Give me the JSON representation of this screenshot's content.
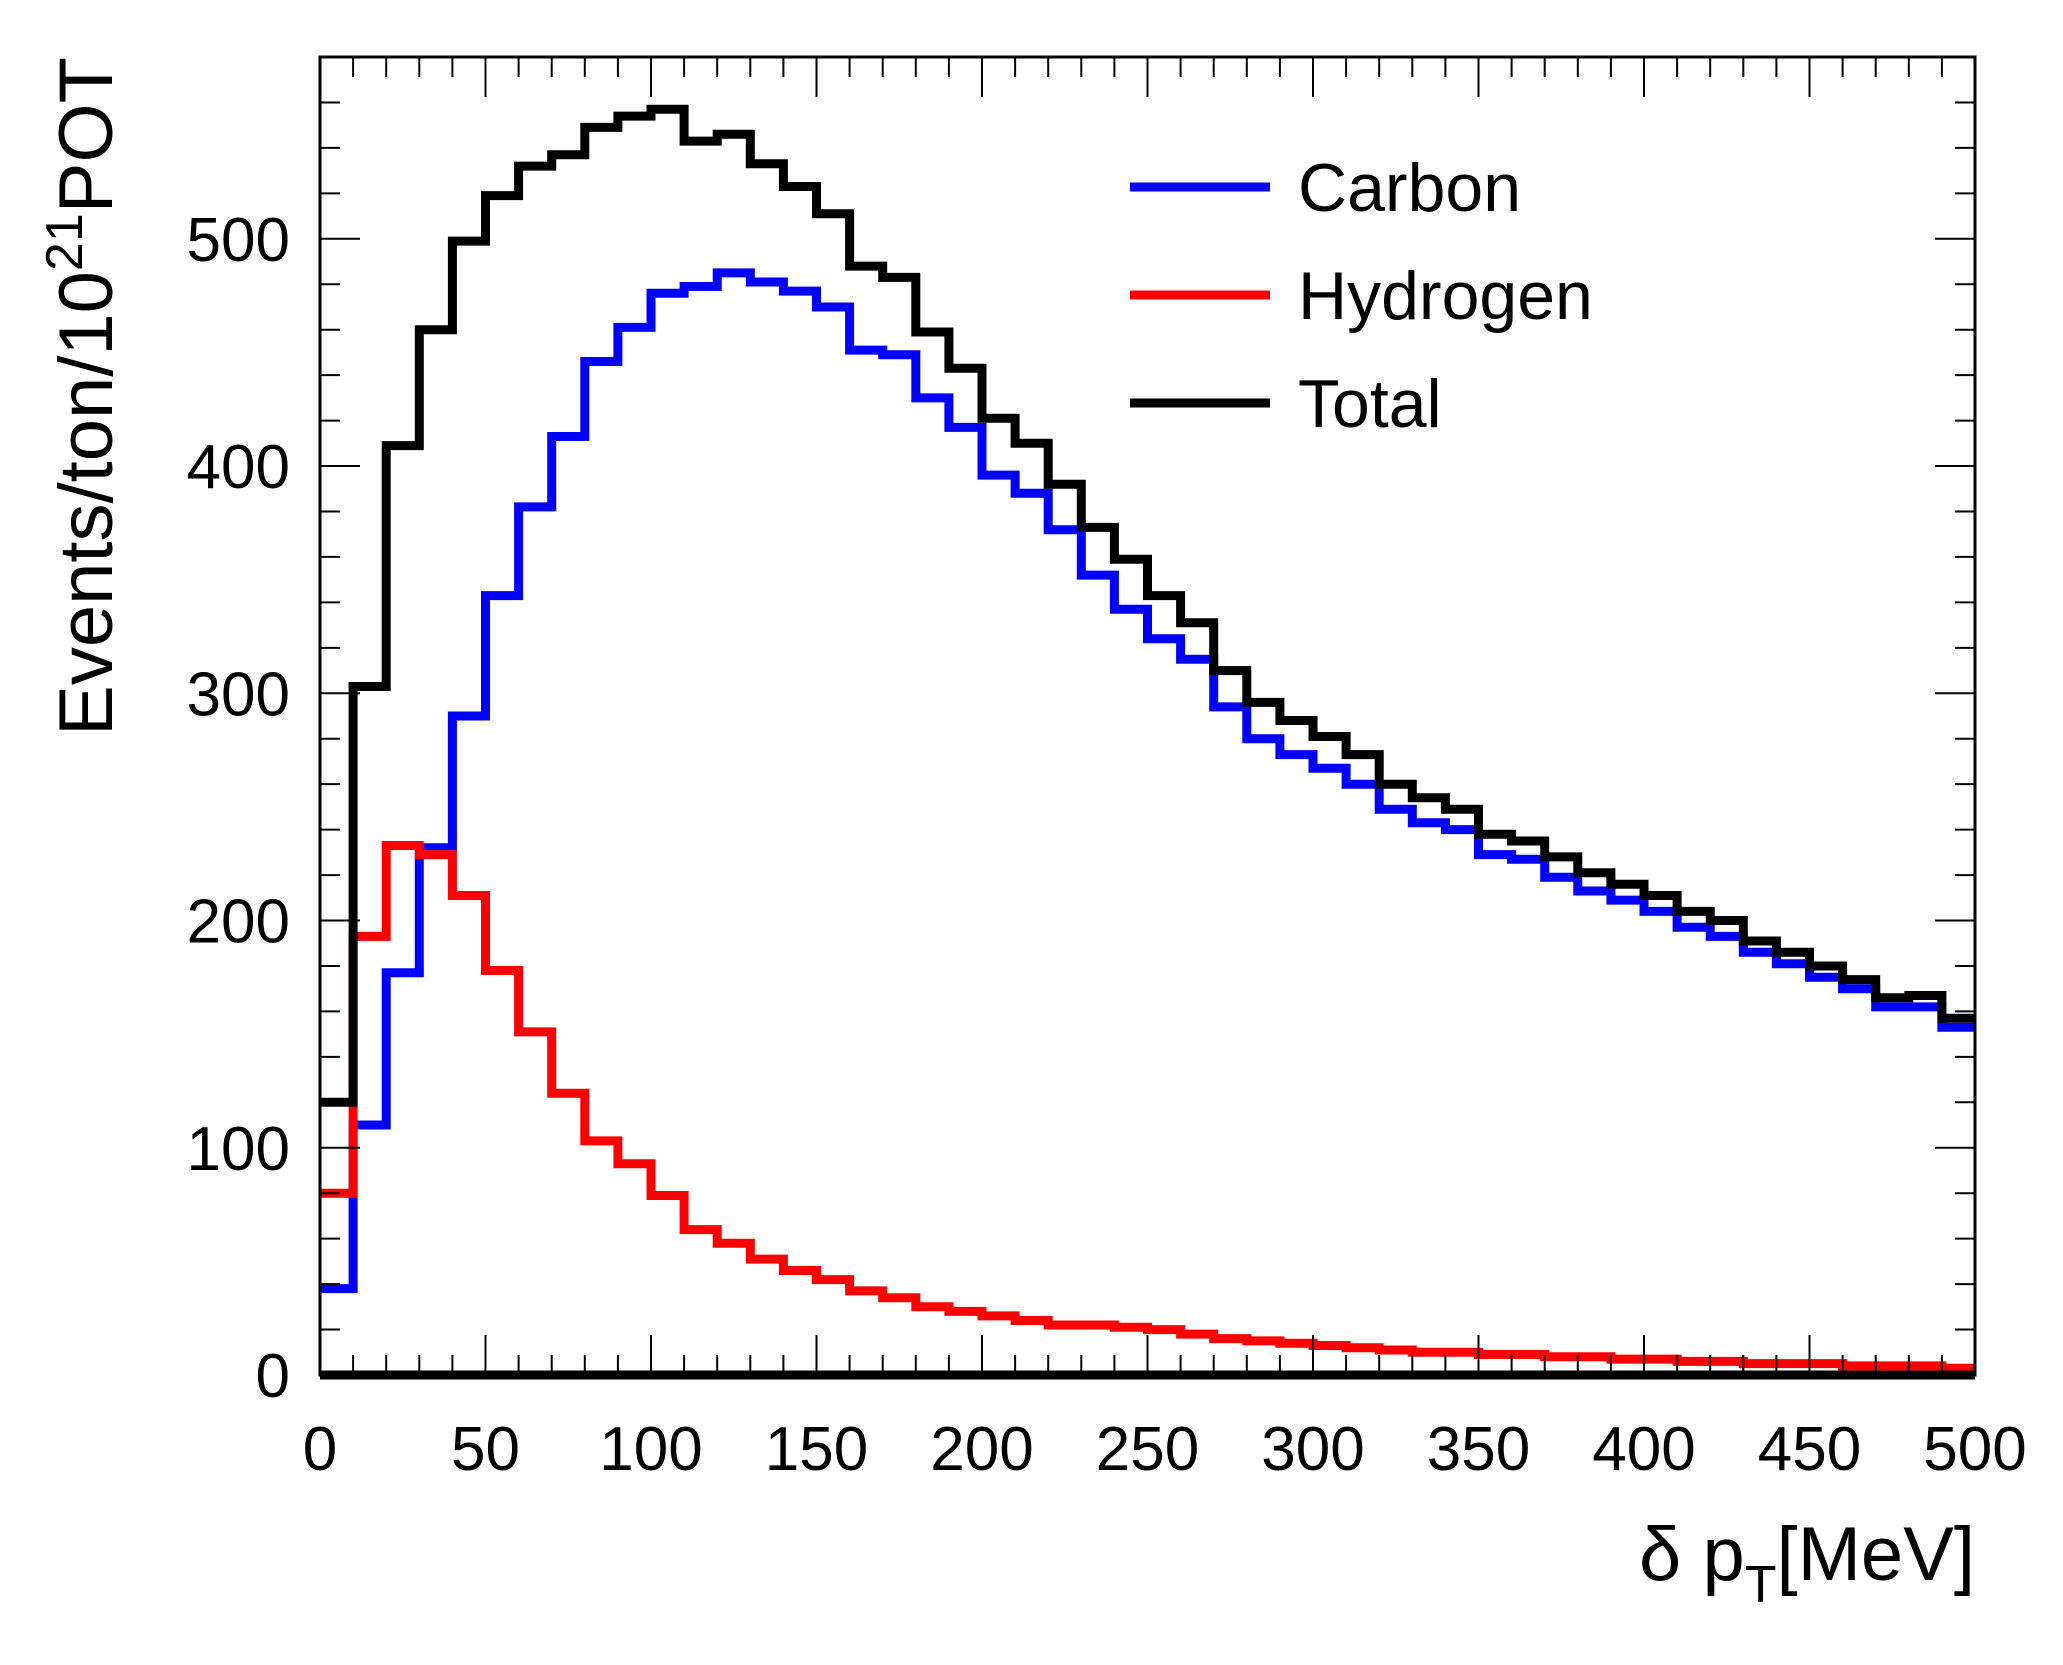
{
  "chart_data": {
    "type": "line",
    "style": "step-histogram",
    "xlabel": "δ p",
    "xlabel_sub": "T",
    "xlabel_unit": "[MeV]",
    "ylabel": "Events/ton/10",
    "ylabel_sup": "21",
    "ylabel_unit": "POT",
    "xlim": [
      0,
      500
    ],
    "ylim": [
      0,
      580
    ],
    "xticks": [
      0,
      50,
      100,
      150,
      200,
      250,
      300,
      350,
      400,
      450,
      500
    ],
    "yticks": [
      0,
      100,
      200,
      300,
      400,
      500
    ],
    "legend_position": "top-right",
    "bin_edges": [
      0,
      10,
      20,
      30,
      40,
      50,
      60,
      70,
      80,
      90,
      100,
      110,
      120,
      130,
      140,
      150,
      160,
      170,
      180,
      190,
      200,
      210,
      220,
      230,
      240,
      250,
      260,
      270,
      280,
      290,
      300,
      310,
      320,
      330,
      340,
      350,
      360,
      370,
      380,
      390,
      400,
      410,
      420,
      430,
      440,
      450,
      460,
      470,
      480,
      490,
      500
    ],
    "series": [
      {
        "name": "Carbon",
        "color": "#0000ff",
        "values": [
          38,
          110,
          177,
          232,
          290,
          343,
          382,
          413,
          446,
          461,
          476,
          479,
          485,
          481,
          477,
          470,
          451,
          449,
          430,
          417,
          396,
          388,
          372,
          352,
          337,
          324,
          315,
          294,
          280,
          273,
          267,
          260,
          249,
          243,
          240,
          229,
          227,
          219,
          213,
          209,
          204,
          197,
          193,
          186,
          181,
          175,
          170,
          162,
          162,
          153
        ]
      },
      {
        "name": "Hydrogen",
        "color": "#ff0000",
        "values": [
          80,
          193,
          233,
          229,
          211,
          178,
          151,
          124,
          103,
          93,
          79,
          64,
          58,
          51,
          46,
          42,
          37,
          34,
          30,
          28,
          26,
          24,
          22,
          22,
          21,
          20,
          18,
          16,
          15,
          14,
          13,
          12,
          11,
          10,
          10,
          9,
          9,
          8,
          8,
          7,
          7,
          6,
          6,
          5,
          5,
          5,
          4,
          4,
          4,
          3
        ]
      },
      {
        "name": "Total",
        "color": "#000000",
        "values": [
          120,
          303,
          409,
          460,
          499,
          519,
          532,
          537,
          549,
          554,
          557,
          543,
          546,
          533,
          523,
          511,
          488,
          483,
          459,
          443,
          421,
          410,
          392,
          373,
          359,
          343,
          331,
          310,
          296,
          288,
          281,
          273,
          260,
          254,
          249,
          238,
          235,
          228,
          221,
          216,
          211,
          204,
          200,
          191,
          186,
          180,
          174,
          166,
          167,
          157
        ]
      }
    ]
  }
}
